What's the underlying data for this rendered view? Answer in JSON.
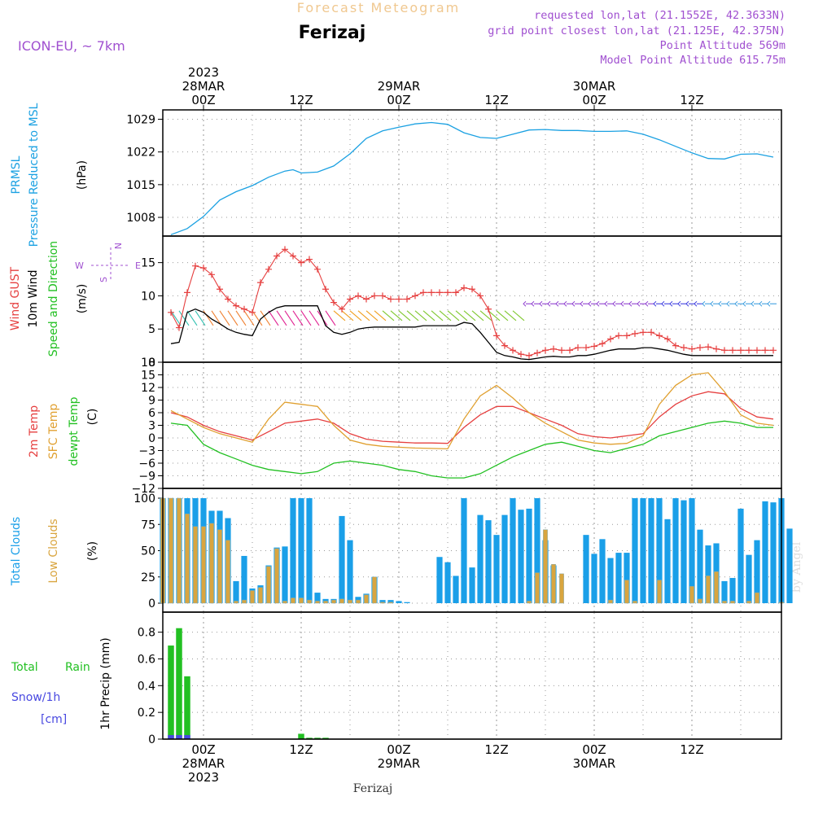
{
  "header": {
    "super_title": "Forecast Meteogram",
    "location": "Ferizaj",
    "model": "ICON-EU, ~ 7km",
    "requested": "requested lon,lat (21.1552E, 42.3633N)",
    "grid_point": "grid point closest lon,lat (21.125E, 42.375N)",
    "point_alt": "Point Altitude 569m",
    "model_alt": "Model Point Altitude 615.75m",
    "footer": "Ferizaj",
    "watermark": "by Angel"
  },
  "time_axis": {
    "top_labels": [
      {
        "h": 0,
        "lines": [
          "2023",
          "28MAR",
          "00Z"
        ]
      },
      {
        "h": 12,
        "lines": [
          "12Z"
        ]
      },
      {
        "h": 24,
        "lines": [
          "29MAR",
          "00Z"
        ]
      },
      {
        "h": 36,
        "lines": [
          "12Z"
        ]
      },
      {
        "h": 48,
        "lines": [
          "30MAR",
          "00Z"
        ]
      },
      {
        "h": 60,
        "lines": [
          "12Z"
        ]
      }
    ],
    "bottom_labels": [
      {
        "h": 0,
        "lines": [
          "00Z",
          "28MAR",
          "2023"
        ]
      },
      {
        "h": 12,
        "lines": [
          "12Z"
        ]
      },
      {
        "h": 24,
        "lines": [
          "00Z",
          "29MAR"
        ]
      },
      {
        "h": 36,
        "lines": [
          "12Z"
        ]
      },
      {
        "h": 48,
        "lines": [
          "00Z",
          "30MAR"
        ]
      },
      {
        "h": 60,
        "lines": [
          "12Z"
        ]
      }
    ],
    "range": [
      -5,
      71
    ]
  },
  "colors": {
    "pressure": "#1ba1e2",
    "gust": "#e64040",
    "wind": "#000000",
    "temp": "#e64040",
    "sfc": "#e0a030",
    "dewpt": "#22c022",
    "total_cloud": "#1a9fe8",
    "low_cloud": "#d9a53f",
    "rain": "#22c022",
    "snow": "#4848e0",
    "purple": "#a050d0",
    "title_orange": "#f0c890"
  },
  "panels": {
    "pressure": {
      "labels": [
        "PRMSL",
        "Pressure Reduced to MSL",
        "(hPa)"
      ],
      "ticks": [
        "1029",
        "1022",
        "1015",
        "1008"
      ]
    },
    "wind": {
      "labels": [
        "Wind GUST",
        "10m Wind",
        "Speed and Direction",
        "(m/s)"
      ],
      "ticks": [
        "15",
        "10",
        "5",
        "0"
      ],
      "compass": {
        "n": "N",
        "s": "S",
        "w": "W",
        "e": "E"
      }
    },
    "temp": {
      "labels": [
        "2m Temp",
        "SFC Temp",
        "dewpt Temp",
        "(C)"
      ],
      "ticks": [
        "18",
        "15",
        "12",
        "9",
        "6",
        "3",
        "0",
        "−3",
        "−6",
        "−9",
        "−12"
      ]
    },
    "clouds": {
      "labels": [
        "Total Clouds",
        "Low Clouds",
        "(%)"
      ],
      "ticks": [
        "100",
        "75",
        "50",
        "25",
        "0"
      ]
    },
    "precip": {
      "labels": [
        "Total",
        "Rain",
        "Snow/1h",
        "[cm]",
        "1hr Precip (mm)"
      ],
      "ticks": [
        "0.8",
        "0.6",
        "0.4",
        "0.2",
        "0"
      ]
    }
  },
  "chart_data": [
    {
      "type": "line",
      "title": "PRMSL Pressure Reduced to MSL",
      "ylabel": "(hPa)",
      "ylim": [
        1004,
        1031
      ],
      "x": [
        -4,
        -2,
        0,
        2,
        4,
        6,
        8,
        10,
        11,
        12,
        14,
        16,
        18,
        20,
        22,
        24,
        26,
        28,
        30,
        32,
        34,
        36,
        38,
        40,
        42,
        44,
        46,
        48,
        50,
        52,
        54,
        56,
        58,
        60,
        62,
        64,
        66,
        68,
        70
      ],
      "series": [
        {
          "name": "PRMSL",
          "values": [
            1004.3,
            1005.6,
            1008.2,
            1011.7,
            1013.5,
            1014.8,
            1016.6,
            1017.9,
            1018.2,
            1017.5,
            1017.7,
            1019.0,
            1021.6,
            1024.9,
            1026.5,
            1027.3,
            1028.0,
            1028.3,
            1027.9,
            1026.1,
            1025.1,
            1024.9,
            1025.8,
            1026.7,
            1026.8,
            1026.6,
            1026.6,
            1026.4,
            1026.4,
            1026.5,
            1025.8,
            1024.6,
            1023.2,
            1021.8,
            1020.6,
            1020.5,
            1021.5,
            1021.6,
            1020.9
          ]
        }
      ]
    },
    {
      "type": "line",
      "title": "Wind GUST / 10m Wind Speed and Direction",
      "ylabel": "(m/s)",
      "ylim": [
        0,
        19
      ],
      "x": [
        -4,
        -3,
        -2,
        -1,
        0,
        1,
        2,
        3,
        4,
        5,
        6,
        7,
        8,
        9,
        10,
        11,
        12,
        13,
        14,
        15,
        16,
        17,
        18,
        19,
        20,
        21,
        22,
        23,
        24,
        25,
        26,
        27,
        28,
        29,
        30,
        31,
        32,
        33,
        34,
        35,
        36,
        37,
        38,
        39,
        40,
        41,
        42,
        43,
        44,
        45,
        46,
        47,
        48,
        49,
        50,
        51,
        52,
        53,
        54,
        55,
        56,
        57,
        58,
        59,
        60,
        61,
        62,
        63,
        64,
        65,
        66,
        67,
        68,
        69,
        70
      ],
      "series": [
        {
          "name": "Wind GUST",
          "values": [
            7.5,
            5.2,
            10.5,
            14.5,
            14.2,
            13.2,
            11.0,
            9.5,
            8.5,
            8.0,
            7.5,
            12.0,
            14.0,
            16.0,
            17.0,
            16.0,
            15.0,
            15.5,
            14.0,
            11.0,
            9.0,
            8.0,
            9.5,
            10.0,
            9.5,
            10.0,
            10.0,
            9.5,
            9.5,
            9.5,
            10.0,
            10.5,
            10.5,
            10.5,
            10.5,
            10.5,
            11.2,
            11.0,
            10.0,
            8.0,
            4.0,
            2.5,
            1.8,
            1.2,
            1.0,
            1.4,
            1.8,
            2.0,
            1.8,
            1.8,
            2.2,
            2.2,
            2.4,
            2.8,
            3.5,
            4.0,
            4.0,
            4.3,
            4.5,
            4.5,
            4.0,
            3.5,
            2.5,
            2.2,
            2.0,
            2.2,
            2.3,
            2.0,
            1.8,
            1.8,
            1.8,
            1.8,
            1.8,
            1.8,
            1.8
          ]
        },
        {
          "name": "10m Wind",
          "values": [
            2.8,
            3.0,
            7.5,
            8.0,
            7.5,
            6.5,
            5.8,
            5.0,
            4.5,
            4.2,
            4.0,
            6.5,
            7.5,
            8.2,
            8.5,
            8.5,
            8.5,
            8.5,
            8.5,
            5.5,
            4.5,
            4.2,
            4.5,
            5.0,
            5.2,
            5.3,
            5.3,
            5.3,
            5.3,
            5.3,
            5.3,
            5.5,
            5.5,
            5.5,
            5.5,
            5.5,
            6.0,
            5.8,
            4.5,
            3.0,
            1.5,
            1.0,
            0.8,
            0.5,
            0.4,
            0.6,
            0.8,
            0.9,
            0.8,
            0.8,
            1.0,
            1.0,
            1.2,
            1.5,
            1.8,
            2.0,
            2.0,
            2.0,
            2.2,
            2.2,
            2.0,
            1.8,
            1.5,
            1.2,
            1.0,
            1.0,
            1.0,
            1.0,
            1.0,
            1.0,
            1.0,
            1.0,
            1.0,
            1.0,
            1.0
          ]
        }
      ]
    },
    {
      "type": "line",
      "title": "2m Temp / SFC Temp / dewpt Temp",
      "ylabel": "(C)",
      "ylim": [
        -12,
        18
      ],
      "x": [
        -4,
        -2,
        0,
        2,
        4,
        6,
        8,
        10,
        12,
        14,
        16,
        18,
        20,
        22,
        24,
        26,
        28,
        30,
        32,
        34,
        36,
        38,
        40,
        42,
        44,
        46,
        48,
        50,
        52,
        54,
        56,
        58,
        60,
        62,
        64,
        66,
        68,
        70
      ],
      "series": [
        {
          "name": "2m Temp",
          "values": [
            6.0,
            5.0,
            3.0,
            1.5,
            0.5,
            -0.5,
            1.5,
            3.5,
            4.0,
            4.5,
            3.5,
            1.0,
            -0.3,
            -0.8,
            -1.0,
            -1.2,
            -1.2,
            -1.3,
            2.5,
            5.5,
            7.5,
            7.5,
            6.0,
            4.5,
            3.0,
            1.0,
            0.3,
            0.0,
            0.5,
            1.0,
            5.0,
            8.0,
            10.0,
            11.0,
            10.5,
            7.0,
            5.0,
            4.5
          ]
        },
        {
          "name": "SFC Temp",
          "values": [
            6.5,
            4.5,
            2.5,
            1.0,
            0.0,
            -1.0,
            4.5,
            8.5,
            8.0,
            7.5,
            3.0,
            -0.5,
            -1.5,
            -2.0,
            -2.2,
            -2.4,
            -2.5,
            -2.6,
            4.5,
            10.0,
            12.5,
            9.5,
            6.0,
            3.5,
            1.5,
            -0.5,
            -1.2,
            -1.5,
            -1.3,
            0.5,
            8.0,
            12.5,
            15.0,
            15.5,
            11.0,
            5.5,
            3.5,
            3.0
          ]
        },
        {
          "name": "dewpt Temp",
          "values": [
            3.5,
            3.0,
            -1.5,
            -3.5,
            -5.0,
            -6.5,
            -7.5,
            -8.0,
            -8.5,
            -8.0,
            -6.0,
            -5.5,
            -6.0,
            -6.5,
            -7.5,
            -8.0,
            -9.0,
            -9.5,
            -9.5,
            -8.5,
            -6.5,
            -4.5,
            -3.0,
            -1.5,
            -1.0,
            -2.0,
            -3.0,
            -3.5,
            -2.5,
            -1.5,
            0.5,
            1.5,
            2.5,
            3.5,
            4.0,
            3.5,
            2.5,
            2.5
          ]
        }
      ]
    },
    {
      "type": "bar",
      "title": "Total Clouds / Low Clouds",
      "ylabel": "(%)",
      "ylim": [
        0,
        100
      ],
      "x_start": -5,
      "series": [
        {
          "name": "Total Clouds",
          "values": [
            100,
            100,
            100,
            100,
            100,
            100,
            88,
            88,
            81,
            21,
            45,
            14,
            17,
            36,
            53,
            54,
            100,
            100,
            100,
            10,
            4,
            4,
            83,
            60,
            6,
            9,
            25,
            3,
            3,
            2,
            1,
            0,
            0,
            0,
            44,
            39,
            26,
            100,
            34,
            84,
            79,
            65,
            84,
            100,
            89,
            90,
            100,
            60,
            36,
            0,
            0,
            0,
            65,
            47,
            61,
            43,
            48,
            48,
            100,
            100,
            100,
            100,
            80,
            100,
            98,
            100,
            70,
            55,
            57,
            21,
            24,
            90,
            46,
            60,
            97,
            96,
            100,
            71
          ]
        },
        {
          "name": "Low Clouds",
          "values": [
            100,
            100,
            100,
            85,
            73,
            73,
            76,
            70,
            60,
            2,
            3,
            12,
            15,
            35,
            52,
            2,
            5,
            5,
            3,
            2,
            2,
            3,
            4,
            3,
            3,
            8,
            25,
            1,
            1,
            0,
            0,
            0,
            0,
            0,
            0,
            0,
            0,
            0,
            0,
            0,
            0,
            0,
            0,
            0,
            0,
            2,
            29,
            70,
            37,
            28,
            0,
            0,
            0,
            0,
            0,
            3,
            0,
            22,
            2,
            0,
            0,
            22,
            0,
            0,
            0,
            16,
            4,
            26,
            30,
            2,
            2,
            0,
            2,
            10,
            0,
            0,
            1,
            0
          ]
        }
      ]
    },
    {
      "type": "bar",
      "title": "1hr Precip",
      "ylabel": "1hr Precip (mm)",
      "ylim": [
        0,
        0.95
      ],
      "x": [
        -4,
        -3,
        -2,
        12,
        13,
        14,
        15
      ],
      "series": [
        {
          "name": "Total Rain",
          "values": [
            0.7,
            0.83,
            0.47,
            0.04,
            0.01,
            0.01,
            0.01
          ]
        },
        {
          "name": "Snow/1h",
          "values": [
            0.03,
            0.03,
            0.03,
            0.0,
            0.0,
            0.0,
            0.0
          ]
        }
      ]
    }
  ]
}
